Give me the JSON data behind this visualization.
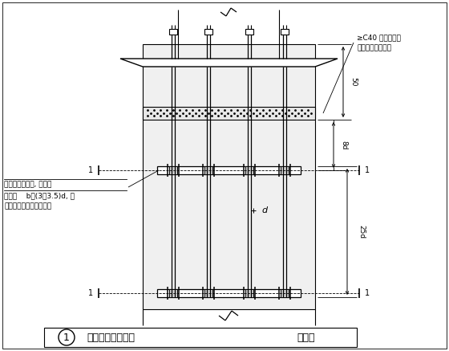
{
  "bg_color": "#ffffff",
  "line_color": "#000000",
  "title_text": "柱脚锚栓固定支架",
  "title_num": "1",
  "title_suffix": "（一）",
  "label_top_right1": "≥C40 无收缩细石",
  "label_top_right2": "混凝土或铸膏砂浆",
  "label_dim_50": "50",
  "label_dim_8d": "8d",
  "label_dim_25d": "25d",
  "label_dim_d": "d",
  "label_left1": "锚栓固定架角钢, 通常角",
  "label_left2": "钢肢宽    b＝(3～3.5)d, 肢",
  "label_left3": "厚取相应型号中之最厚者"
}
